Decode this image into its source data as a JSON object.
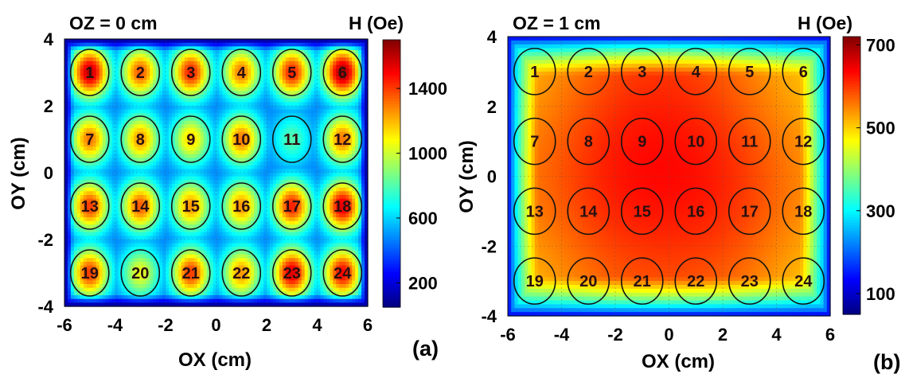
{
  "chart_data": [
    {
      "type": "heatmap",
      "title": "OZ = 0 cm",
      "xlabel": "OX (cm)",
      "ylabel": "OY (cm)",
      "colorbar_label": "H (Oe)",
      "panel_label": "(a)",
      "xlim": [
        -6,
        6
      ],
      "ylim": [
        -4,
        4
      ],
      "x_ticks": [
        -6,
        -4,
        -2,
        0,
        2,
        4,
        6
      ],
      "y_ticks": [
        -4,
        -2,
        0,
        2,
        4
      ],
      "colorbar_range": [
        50,
        1700
      ],
      "colorbar_ticks": [
        200,
        600,
        1000,
        1400
      ],
      "colormap": "jet",
      "coil_centers_x": [
        -5,
        -3,
        -1,
        1,
        3,
        5
      ],
      "coil_centers_y": [
        3,
        1,
        -1,
        -3
      ],
      "coil_labels": [
        "1",
        "2",
        "3",
        "4",
        "5",
        "6",
        "7",
        "8",
        "9",
        "10",
        "11",
        "12",
        "13",
        "14",
        "15",
        "16",
        "17",
        "18",
        "19",
        "20",
        "21",
        "22",
        "23",
        "24"
      ],
      "peak_values": [
        1600,
        1350,
        1450,
        1300,
        1450,
        1650,
        1300,
        1250,
        1150,
        1300,
        800,
        1300,
        1400,
        1350,
        1250,
        1250,
        1450,
        1550,
        1400,
        1050,
        1400,
        1250,
        1550,
        1500
      ],
      "background_value": 450
    },
    {
      "type": "heatmap",
      "title": "OZ = 1 cm",
      "xlabel": "OX (cm)",
      "ylabel": "OY (cm)",
      "colorbar_label": "H (Oe)",
      "panel_label": "(b)",
      "xlim": [
        -6,
        6
      ],
      "ylim": [
        -4,
        4
      ],
      "x_ticks": [
        -6,
        -4,
        -2,
        0,
        2,
        4,
        6
      ],
      "y_ticks": [
        -4,
        -2,
        0,
        2,
        4
      ],
      "colorbar_range": [
        50,
        720
      ],
      "colorbar_ticks": [
        100,
        300,
        500,
        700
      ],
      "colormap": "jet",
      "coil_centers_x": [
        -5,
        -3,
        -1,
        1,
        3,
        5
      ],
      "coil_centers_y": [
        3,
        1,
        -1,
        -3
      ],
      "coil_labels": [
        "1",
        "2",
        "3",
        "4",
        "5",
        "6",
        "7",
        "8",
        "9",
        "10",
        "11",
        "12",
        "13",
        "14",
        "15",
        "16",
        "17",
        "18",
        "19",
        "20",
        "21",
        "22",
        "23",
        "24"
      ],
      "peak_values": [
        460,
        540,
        590,
        570,
        540,
        440,
        530,
        650,
        670,
        660,
        600,
        520,
        540,
        660,
        650,
        660,
        680,
        520,
        440,
        540,
        550,
        540,
        530,
        430
      ],
      "background_value": 80
    }
  ]
}
